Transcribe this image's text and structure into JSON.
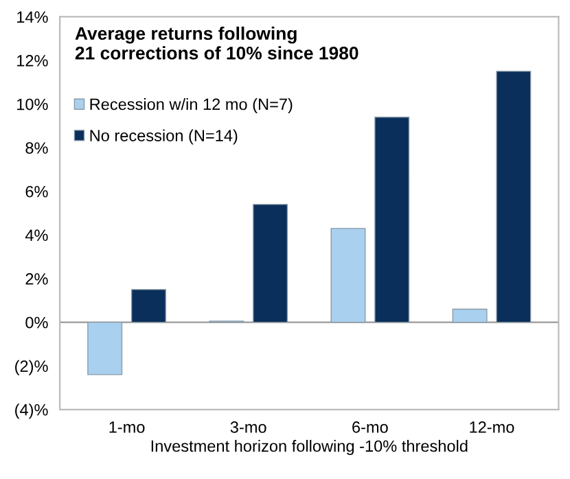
{
  "chart_data": {
    "type": "bar",
    "title": "Average returns following\n21 corrections of 10% since 1980",
    "xlabel": "Investment horizon following -10% threshold",
    "categories": [
      "1-mo",
      "3-mo",
      "6-mo",
      "12-mo"
    ],
    "series": [
      {
        "name": "Recession w/in 12 mo (N=7)",
        "color": "#a9d0ee",
        "values": [
          -2.4,
          0.05,
          4.3,
          0.6
        ]
      },
      {
        "name": "No recession (N=14)",
        "color": "#0b2f5b",
        "values": [
          1.5,
          5.4,
          9.4,
          11.5
        ]
      }
    ],
    "ylim": [
      -4,
      14
    ],
    "yticks": [
      {
        "value": -4,
        "label": "(4)%"
      },
      {
        "value": -2,
        "label": "(2)%"
      },
      {
        "value": 0,
        "label": "0%"
      },
      {
        "value": 2,
        "label": "2%"
      },
      {
        "value": 4,
        "label": "4%"
      },
      {
        "value": 6,
        "label": "6%"
      },
      {
        "value": 8,
        "label": "8%"
      },
      {
        "value": 10,
        "label": "10%"
      },
      {
        "value": 12,
        "label": "12%"
      },
      {
        "value": 14,
        "label": "14%"
      }
    ],
    "legend": "top left"
  }
}
